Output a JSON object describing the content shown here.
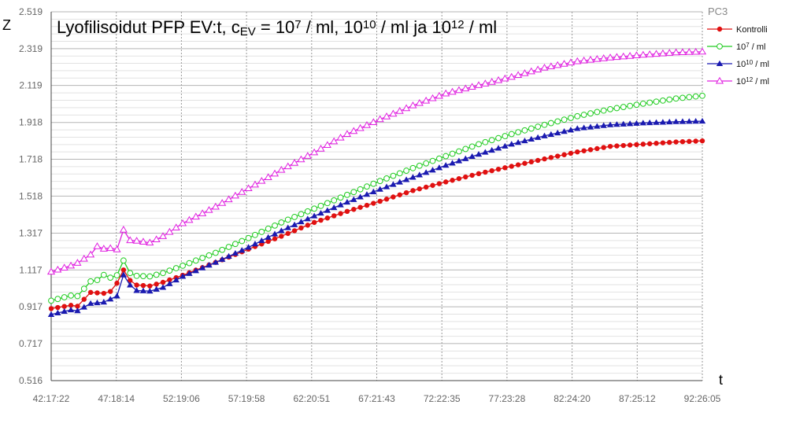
{
  "chart_data": {
    "type": "line",
    "title": {
      "parts": [
        {
          "t": "Lyofilisoidut PFP EV:t, c"
        },
        {
          "t": "EV",
          "s": "sub"
        },
        {
          "t": " = 10"
        },
        {
          "t": "7",
          "s": "sup"
        },
        {
          "t": " / ml, 10"
        },
        {
          "t": "10",
          "s": "sup"
        },
        {
          "t": " / ml ja 10"
        },
        {
          "t": "12",
          "s": "sup"
        },
        {
          "t": " / ml"
        }
      ]
    },
    "xlabel": "t",
    "ylabel": "Z",
    "legend_title": "PC3",
    "legend_position": "right",
    "x_tick_labels": [
      "42:17:22",
      "47:18:14",
      "52:19:06",
      "57:19:58",
      "62:20:51",
      "67:21:43",
      "72:22:35",
      "77:23:28",
      "82:24:20",
      "87:25:12",
      "92:26:05"
    ],
    "x_range": [
      "42:17:22",
      "92:26:05"
    ],
    "y_ticks": [
      0.516,
      0.717,
      0.917,
      1.117,
      1.317,
      1.518,
      1.718,
      1.918,
      2.119,
      2.319,
      2.519
    ],
    "y_tick_labels": [
      "0.516",
      "0.717",
      "0.917",
      "1.117",
      "1.317",
      "1.518",
      "1.718",
      "1.918",
      "2.119",
      "2.319",
      "2.519"
    ],
    "ylim": [
      0.516,
      2.519
    ],
    "grid": true,
    "point_count": 100,
    "series": [
      {
        "name": "Kontrolli",
        "legend_parts": [
          {
            "t": "Kontrolli"
          }
        ],
        "color": "#e01010",
        "marker": "filled-circle",
        "keypoints": [
          [
            0,
            0.907
          ],
          [
            3,
            0.925
          ],
          [
            4,
            0.92
          ],
          [
            6,
            0.995
          ],
          [
            8,
            0.99
          ],
          [
            9,
            1.0
          ],
          [
            10,
            1.045
          ],
          [
            11,
            1.117
          ],
          [
            12,
            1.06
          ],
          [
            13,
            1.035
          ],
          [
            15,
            1.03
          ],
          [
            17,
            1.05
          ],
          [
            20,
            1.088
          ],
          [
            25,
            1.158
          ],
          [
            30,
            1.23
          ],
          [
            35,
            1.3
          ],
          [
            40,
            1.375
          ],
          [
            45,
            1.435
          ],
          [
            50,
            1.49
          ],
          [
            55,
            1.548
          ],
          [
            60,
            1.595
          ],
          [
            65,
            1.64
          ],
          [
            70,
            1.68
          ],
          [
            75,
            1.72
          ],
          [
            80,
            1.758
          ],
          [
            85,
            1.788
          ],
          [
            90,
            1.8
          ],
          [
            95,
            1.812
          ],
          [
            99,
            1.818
          ]
        ]
      },
      {
        "name": "10^7 / ml",
        "legend_parts": [
          {
            "t": "10"
          },
          {
            "t": "7",
            "s": "sup"
          },
          {
            "t": " / ml"
          }
        ],
        "color": "#22cc22",
        "marker": "open-circle",
        "keypoints": [
          [
            0,
            0.95
          ],
          [
            3,
            0.978
          ],
          [
            4,
            0.975
          ],
          [
            6,
            1.055
          ],
          [
            7,
            1.062
          ],
          [
            8,
            1.09
          ],
          [
            9,
            1.075
          ],
          [
            10,
            1.088
          ],
          [
            11,
            1.168
          ],
          [
            12,
            1.1
          ],
          [
            13,
            1.085
          ],
          [
            15,
            1.082
          ],
          [
            17,
            1.1
          ],
          [
            20,
            1.14
          ],
          [
            25,
            1.21
          ],
          [
            30,
            1.29
          ],
          [
            35,
            1.375
          ],
          [
            40,
            1.45
          ],
          [
            45,
            1.525
          ],
          [
            50,
            1.6
          ],
          [
            55,
            1.67
          ],
          [
            60,
            1.735
          ],
          [
            65,
            1.8
          ],
          [
            70,
            1.855
          ],
          [
            75,
            1.905
          ],
          [
            80,
            1.952
          ],
          [
            85,
            1.99
          ],
          [
            90,
            2.02
          ],
          [
            95,
            2.048
          ],
          [
            99,
            2.063
          ]
        ]
      },
      {
        "name": "10^10 / ml",
        "legend_parts": [
          {
            "t": "10"
          },
          {
            "t": "10",
            "s": "sup"
          },
          {
            "t": " / ml"
          }
        ],
        "color": "#1a1ab0",
        "marker": "filled-triangle",
        "keypoints": [
          [
            0,
            0.875
          ],
          [
            3,
            0.9
          ],
          [
            4,
            0.895
          ],
          [
            6,
            0.935
          ],
          [
            8,
            0.942
          ],
          [
            10,
            0.975
          ],
          [
            11,
            1.09
          ],
          [
            12,
            1.035
          ],
          [
            13,
            1.005
          ],
          [
            15,
            1.002
          ],
          [
            17,
            1.022
          ],
          [
            20,
            1.082
          ],
          [
            25,
            1.158
          ],
          [
            30,
            1.24
          ],
          [
            35,
            1.33
          ],
          [
            40,
            1.41
          ],
          [
            45,
            1.485
          ],
          [
            50,
            1.555
          ],
          [
            55,
            1.62
          ],
          [
            60,
            1.685
          ],
          [
            65,
            1.745
          ],
          [
            70,
            1.8
          ],
          [
            75,
            1.845
          ],
          [
            80,
            1.885
          ],
          [
            85,
            1.905
          ],
          [
            90,
            1.915
          ],
          [
            95,
            1.922
          ],
          [
            99,
            1.925
          ]
        ]
      },
      {
        "name": "10^12 / ml",
        "legend_parts": [
          {
            "t": "10"
          },
          {
            "t": "12",
            "s": "sup"
          },
          {
            "t": " / ml"
          }
        ],
        "color": "#e020e0",
        "marker": "open-triangle",
        "keypoints": [
          [
            0,
            1.107
          ],
          [
            3,
            1.14
          ],
          [
            4,
            1.155
          ],
          [
            6,
            1.2
          ],
          [
            7,
            1.245
          ],
          [
            8,
            1.232
          ],
          [
            9,
            1.235
          ],
          [
            10,
            1.228
          ],
          [
            11,
            1.335
          ],
          [
            12,
            1.278
          ],
          [
            13,
            1.275
          ],
          [
            15,
            1.265
          ],
          [
            17,
            1.3
          ],
          [
            20,
            1.37
          ],
          [
            25,
            1.46
          ],
          [
            30,
            1.56
          ],
          [
            35,
            1.66
          ],
          [
            40,
            1.755
          ],
          [
            45,
            1.855
          ],
          [
            50,
            1.935
          ],
          [
            55,
            2.01
          ],
          [
            60,
            2.075
          ],
          [
            65,
            2.12
          ],
          [
            70,
            2.165
          ],
          [
            75,
            2.215
          ],
          [
            80,
            2.25
          ],
          [
            85,
            2.27
          ],
          [
            90,
            2.285
          ],
          [
            95,
            2.298
          ],
          [
            99,
            2.302
          ]
        ]
      }
    ]
  }
}
